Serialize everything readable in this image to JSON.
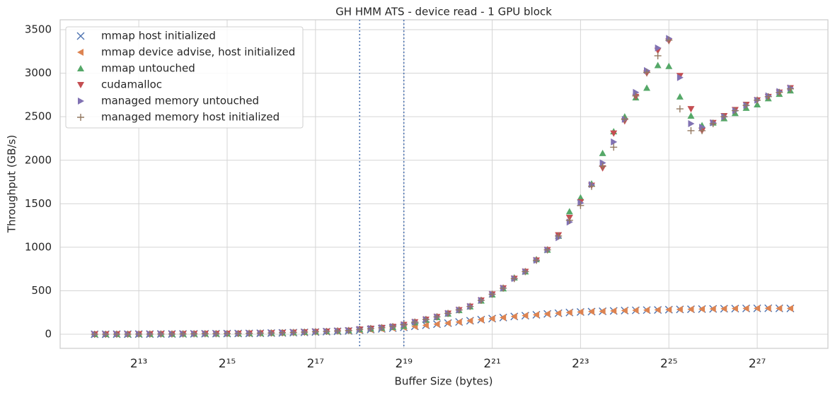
{
  "chart_data": {
    "type": "scatter",
    "title": "GH HMM ATS - device read - 1 GPU block",
    "xlabel": "Buffer Size (bytes)",
    "ylabel": "Throughput (GB/s)",
    "xscale": "log2",
    "grid": true,
    "legend": "upper left",
    "xlim": [
      2385,
      406900000
    ],
    "ylim": [
      -162,
      3614
    ],
    "xticks": [
      {
        "value": 8192,
        "label": "2¹³"
      },
      {
        "value": 32768,
        "label": "2¹⁵"
      },
      {
        "value": 131072,
        "label": "2¹⁷"
      },
      {
        "value": 524288,
        "label": "2¹⁹"
      },
      {
        "value": 2097152,
        "label": "2²¹"
      },
      {
        "value": 8388608,
        "label": "2²³"
      },
      {
        "value": 33554432,
        "label": "2²⁵"
      },
      {
        "value": 134217728,
        "label": "2²⁷"
      }
    ],
    "yticks": [
      0,
      500,
      1000,
      1500,
      2000,
      2500,
      3000,
      3500
    ],
    "vlines": [
      262144,
      524288
    ],
    "vline_color": "#4c72b0",
    "x": [
      4096,
      4871,
      5793,
      6889,
      8192,
      9742,
      11585,
      13777,
      16384,
      19484,
      23170,
      27554,
      32768,
      38968,
      46341,
      55109,
      65536,
      77936,
      92682,
      110218,
      131072,
      155872,
      185364,
      220435,
      262144,
      311744,
      370728,
      440871,
      524288,
      623487,
      741455,
      881743,
      1048576,
      1246974,
      1482910,
      1763485,
      2097152,
      2493948,
      2965821,
      3526970,
      4194304,
      4987896,
      5931642,
      7053940,
      8388608,
      9975792,
      11863283,
      14107880,
      16777216,
      19951584,
      23726566,
      28215760,
      33554432,
      39903169,
      47453133,
      56431520,
      67108864,
      79806338,
      94906266,
      112863040,
      134217728,
      159612676,
      189812531,
      225726081
    ],
    "series": [
      {
        "name": "mmap host initialized",
        "color": "#4c72b0",
        "marker": "x",
        "values": [
          0,
          0,
          1,
          1,
          2,
          2,
          3,
          3,
          4,
          5,
          6,
          7,
          8,
          9,
          10,
          12,
          14,
          16,
          19,
          22,
          26,
          30,
          34,
          38,
          46,
          54,
          62,
          70,
          80,
          92,
          104,
          116,
          128,
          142,
          156,
          168,
          180,
          192,
          204,
          214,
          224,
          234,
          242,
          250,
          256,
          260,
          264,
          268,
          272,
          275,
          278,
          280,
          283,
          286,
          288,
          290,
          292,
          294,
          295,
          297,
          298,
          299,
          298,
          297
        ]
      },
      {
        "name": "mmap device advise, host initialized",
        "color": "#dd8452",
        "marker": "triangle-left",
        "values": [
          0,
          0,
          1,
          1,
          2,
          2,
          3,
          3,
          4,
          5,
          6,
          7,
          8,
          9,
          10,
          12,
          14,
          16,
          19,
          22,
          26,
          30,
          34,
          38,
          46,
          53,
          61,
          70,
          80,
          90,
          103,
          116,
          128,
          140,
          155,
          168,
          180,
          192,
          204,
          215,
          224,
          234,
          242,
          250,
          256,
          261,
          264,
          268,
          272,
          275,
          278,
          281,
          283,
          286,
          288,
          290,
          292,
          294,
          296,
          297,
          298,
          299,
          298,
          297
        ]
      },
      {
        "name": "mmap untouched",
        "color": "#55a868",
        "marker": "triangle-up",
        "values": [
          0,
          0,
          1,
          1,
          2,
          2,
          3,
          3,
          4,
          5,
          6,
          7,
          8,
          9,
          11,
          13,
          15,
          18,
          21,
          25,
          29,
          33,
          38,
          43,
          55,
          63,
          72,
          82,
          95,
          135,
          165,
          195,
          235,
          275,
          318,
          385,
          455,
          525,
          650,
          720,
          860,
          970,
          1130,
          1410,
          1570,
          1730,
          2080,
          2330,
          2500,
          2720,
          2830,
          3090,
          3080,
          2730,
          2510,
          2400,
          2430,
          2480,
          2540,
          2600,
          2640,
          2710,
          2760,
          2800
        ]
      },
      {
        "name": "cudamalloc",
        "color": "#c44e52",
        "marker": "triangle-down",
        "values": [
          0,
          0,
          1,
          1,
          2,
          2,
          3,
          3,
          4,
          5,
          6,
          7,
          8,
          9,
          11,
          13,
          15,
          18,
          21,
          25,
          29,
          33,
          38,
          43,
          57,
          66,
          76,
          88,
          110,
          140,
          170,
          200,
          240,
          280,
          320,
          390,
          460,
          530,
          640,
          720,
          850,
          970,
          1140,
          1340,
          1520,
          1710,
          1910,
          2310,
          2450,
          2730,
          3000,
          3260,
          3370,
          2970,
          2590,
          2340,
          2430,
          2510,
          2580,
          2640,
          2690,
          2730,
          2780,
          2830
        ]
      },
      {
        "name": "managed memory untouched",
        "color": "#8172b3",
        "marker": "triangle-right",
        "values": [
          0,
          0,
          1,
          1,
          2,
          2,
          3,
          3,
          4,
          5,
          6,
          7,
          8,
          9,
          11,
          13,
          15,
          18,
          21,
          25,
          29,
          33,
          38,
          43,
          57,
          66,
          76,
          88,
          110,
          140,
          170,
          200,
          240,
          280,
          320,
          390,
          460,
          530,
          640,
          720,
          850,
          970,
          1110,
          1290,
          1510,
          1720,
          1970,
          2210,
          2470,
          2780,
          3030,
          3290,
          3400,
          2950,
          2420,
          2380,
          2430,
          2500,
          2570,
          2630,
          2690,
          2740,
          2790,
          2830
        ]
      },
      {
        "name": "managed memory host initialized",
        "color": "#937860",
        "marker": "plus",
        "values": [
          0,
          0,
          1,
          1,
          2,
          2,
          3,
          3,
          4,
          5,
          6,
          7,
          8,
          9,
          11,
          13,
          15,
          18,
          21,
          25,
          29,
          33,
          38,
          43,
          57,
          66,
          76,
          88,
          110,
          140,
          170,
          200,
          240,
          280,
          320,
          390,
          460,
          530,
          640,
          720,
          850,
          970,
          1130,
          1310,
          1480,
          1700,
          1930,
          2150,
          2470,
          2740,
          3010,
          3200,
          3380,
          2590,
          2340,
          2340,
          2420,
          2500,
          2570,
          2630,
          2690,
          2730,
          2780,
          2820
        ]
      }
    ]
  }
}
